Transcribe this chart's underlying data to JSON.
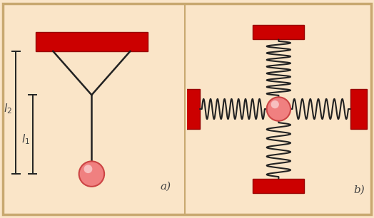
{
  "bg_color": "#FAE5C8",
  "border_color": "#C8A870",
  "red_color": "#CC0000",
  "red_edge_color": "#990000",
  "ball_color": "#F08080",
  "ball_edge_color": "#CC4444",
  "line_color": "#222222",
  "label_color": "#444444",
  "panel_a_label": "a)",
  "panel_b_label": "b)",
  "l1_label": "$l_1$",
  "l2_label": "$l_2$"
}
